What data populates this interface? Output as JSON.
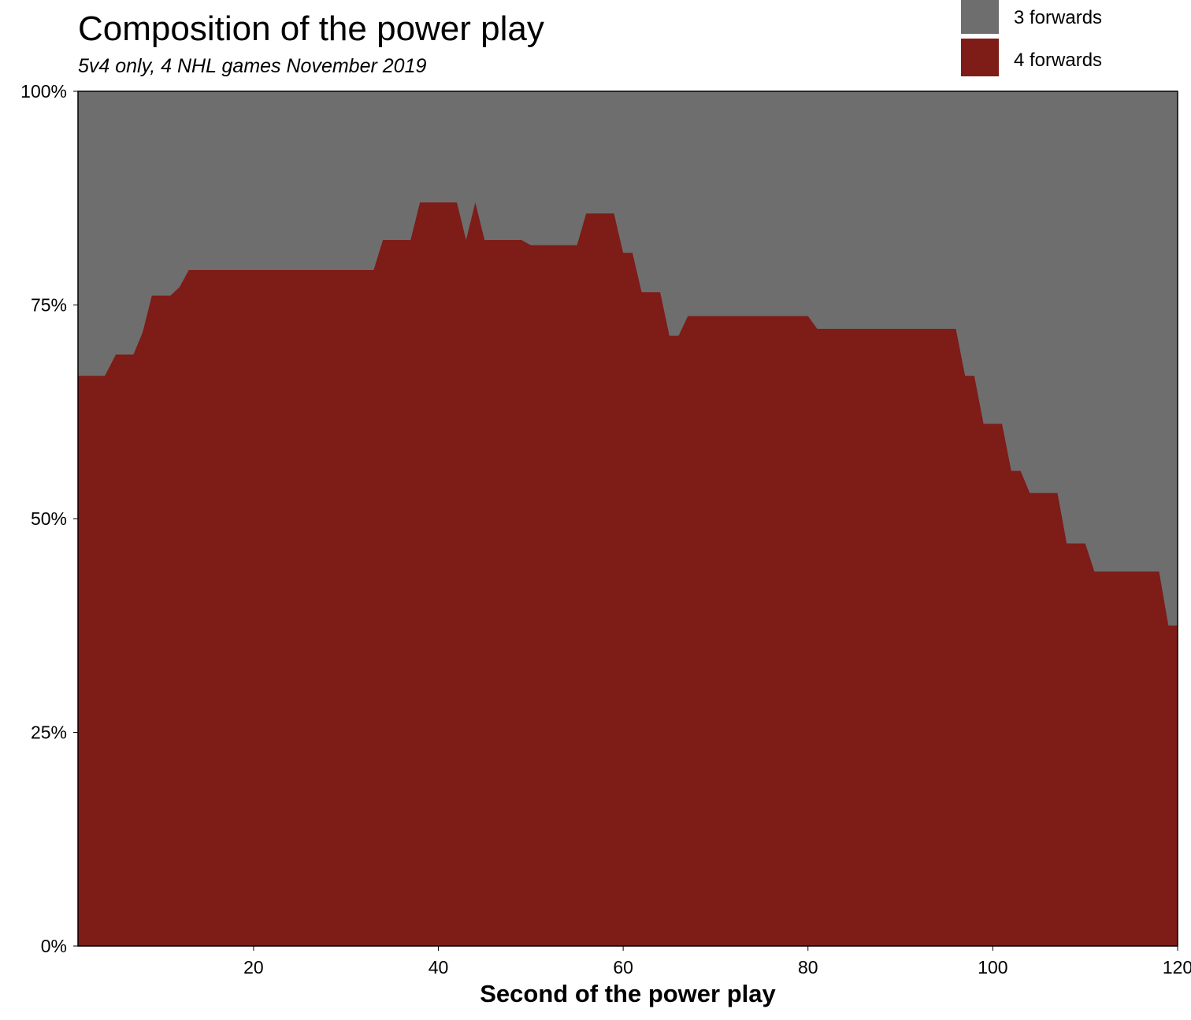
{
  "chart_data": {
    "type": "area",
    "stacked": true,
    "percent": true,
    "title": "Composition of the power play",
    "subtitle": "5v4 only, 4 NHL games November 2019",
    "xlabel": "Second of the power play",
    "ylabel": "",
    "xlim": [
      1,
      120
    ],
    "ylim": [
      0,
      100
    ],
    "x_ticks": [
      20,
      40,
      60,
      80,
      100,
      120
    ],
    "y_ticks": [
      {
        "value": 0,
        "label": "0%"
      },
      {
        "value": 25,
        "label": "25%"
      },
      {
        "value": 50,
        "label": "50%"
      },
      {
        "value": 75,
        "label": "75%"
      },
      {
        "value": 100,
        "label": "100%"
      }
    ],
    "grid": false,
    "legend_position": "top-right",
    "series": [
      {
        "name": "3 forwards",
        "color": "#6e6e6e",
        "fill": "remainder to 100%"
      },
      {
        "name": "4 forwards",
        "color": "#7e1c17"
      }
    ],
    "x": [
      1,
      3.9,
      5.1,
      7,
      8,
      9,
      11,
      12,
      13,
      33,
      34,
      37,
      38,
      42,
      43,
      44,
      45,
      49,
      50,
      55,
      56,
      59,
      60,
      61,
      62,
      64,
      65,
      66,
      67,
      80,
      81,
      96,
      97,
      98,
      99,
      101,
      102,
      103,
      104,
      107,
      108,
      110,
      111,
      118,
      119,
      120
    ],
    "four_forwards_pct": [
      66.7,
      66.7,
      69.2,
      69.2,
      71.8,
      76.1,
      76.1,
      77.1,
      79.1,
      79.1,
      82.6,
      82.6,
      87.0,
      87.0,
      82.6,
      87.0,
      82.6,
      82.6,
      82.0,
      82.0,
      85.7,
      85.7,
      81.1,
      81.1,
      76.5,
      76.5,
      71.4,
      71.4,
      73.7,
      73.7,
      72.2,
      72.2,
      66.7,
      66.7,
      61.1,
      61.1,
      55.6,
      55.6,
      53.0,
      53.0,
      47.1,
      47.1,
      43.8,
      43.8,
      37.5,
      37.5
    ]
  }
}
